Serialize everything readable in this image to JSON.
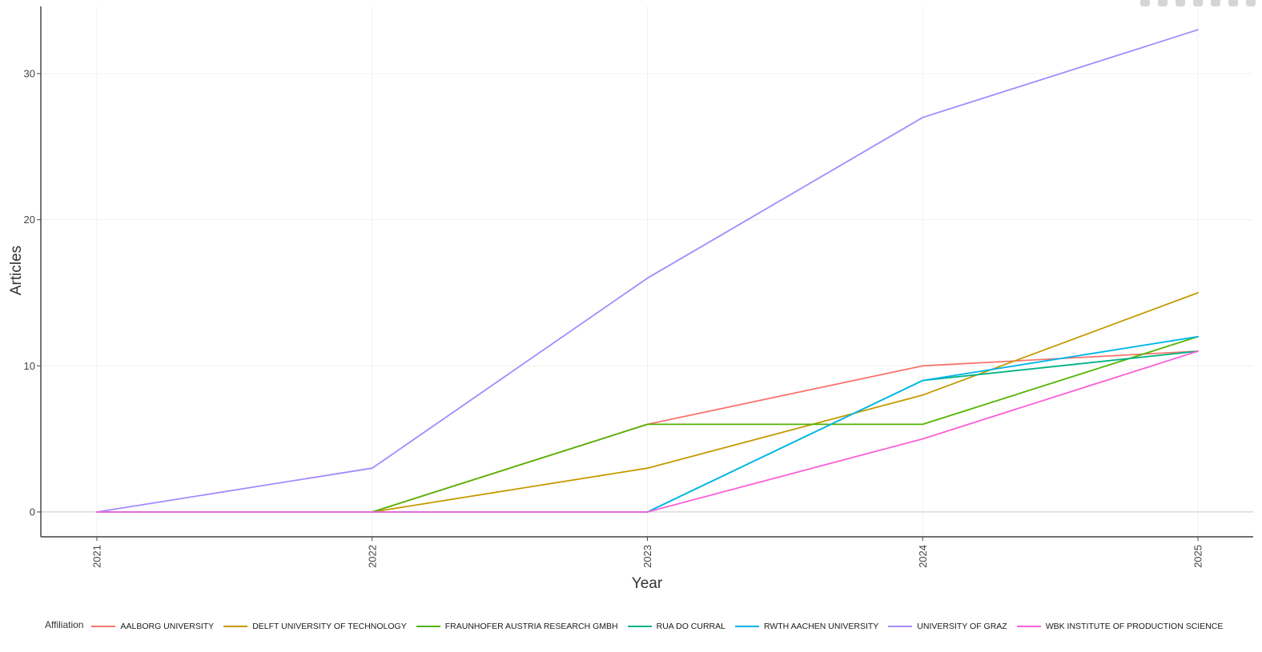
{
  "chart_data": {
    "type": "line",
    "xlabel": "Year",
    "ylabel": "Articles",
    "x": [
      "2021",
      "2022",
      "2023",
      "2024",
      "2025"
    ],
    "yticks": [
      "0",
      "10",
      "20",
      "30"
    ],
    "ylim": [
      -1.7,
      34.6
    ],
    "grid": true,
    "legend": {
      "title": "Affiliation",
      "placement": "bottom"
    },
    "series": [
      {
        "name": "AALBORG UNIVERSITY",
        "color": "#F8766D",
        "values": [
          0,
          0,
          6,
          10,
          11
        ]
      },
      {
        "name": "DELFT UNIVERSITY OF TECHNOLOGY",
        "color": "#C49A00",
        "values": [
          0,
          0,
          3,
          8,
          15
        ]
      },
      {
        "name": "FRAUNHOFER AUSTRIA RESEARCH GMBH",
        "color": "#53B400",
        "values": [
          0,
          0,
          6,
          6,
          12
        ]
      },
      {
        "name": "RUA DO CURRAL",
        "color": "#00B386",
        "values": [
          0,
          0,
          0,
          9,
          11
        ]
      },
      {
        "name": "RWTH AACHEN UNIVERSITY",
        "color": "#00B6EB",
        "values": [
          0,
          0,
          0,
          9,
          12
        ]
      },
      {
        "name": "UNIVERSITY OF GRAZ",
        "color": "#A58AFF",
        "values": [
          0,
          3,
          16,
          27,
          33
        ]
      },
      {
        "name": "WBK INSTITUTE OF PRODUCTION SCIENCE",
        "color": "#FB61D7",
        "values": [
          0,
          0,
          0,
          5,
          11
        ]
      }
    ]
  }
}
